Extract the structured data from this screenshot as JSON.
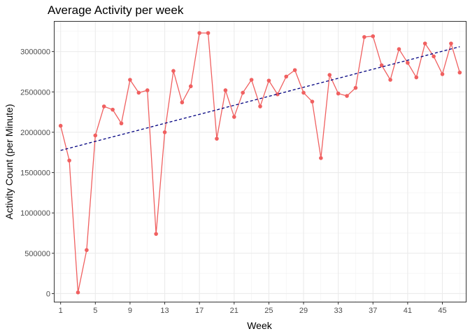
{
  "chart_data": {
    "type": "line",
    "title": "Average Activity per week",
    "xlabel": "Week",
    "ylabel": "Activity Count (per Minute)",
    "xlim": [
      0.3,
      47.7
    ],
    "ylim": [
      -100000,
      3370000
    ],
    "x_ticks": [
      1,
      5,
      9,
      13,
      17,
      21,
      25,
      29,
      33,
      37,
      41,
      45
    ],
    "y_ticks": [
      0,
      500000,
      1000000,
      1500000,
      2000000,
      2500000,
      3000000
    ],
    "x_tick_labels": [
      "1",
      "5",
      "9",
      "13",
      "17",
      "21",
      "25",
      "29",
      "33",
      "37",
      "41",
      "45"
    ],
    "y_tick_labels": [
      "0",
      "500000",
      "1000000",
      "1500000",
      "2000000",
      "2500000",
      "3000000"
    ],
    "grid": true,
    "legend": "none",
    "series": [
      {
        "color": "#f06060",
        "x": [
          1,
          2,
          3,
          4,
          5,
          6,
          7,
          8,
          9,
          10,
          11,
          12,
          13,
          14,
          15,
          16,
          17,
          18,
          19,
          20,
          21,
          22,
          23,
          24,
          25,
          26,
          27,
          28,
          29,
          30,
          31,
          32,
          33,
          34,
          35,
          36,
          37,
          38,
          39,
          40,
          41,
          42,
          43,
          44,
          45,
          46,
          47
        ],
        "values": [
          2080000,
          1650000,
          15000,
          540000,
          1960000,
          2320000,
          2280000,
          2110000,
          2650000,
          2490000,
          2520000,
          740000,
          2000000,
          2760000,
          2370000,
          2570000,
          3230000,
          3230000,
          1920000,
          2520000,
          2190000,
          2490000,
          2650000,
          2320000,
          2640000,
          2470000,
          2690000,
          2770000,
          2490000,
          2380000,
          1680000,
          2710000,
          2480000,
          2450000,
          2550000,
          3180000,
          3190000,
          2830000,
          2650000,
          3030000,
          2860000,
          2680000,
          3100000,
          2940000,
          2720000,
          3100000,
          2740000
        ]
      }
    ],
    "trendline": {
      "style": "dashed",
      "color": "#000080",
      "x": [
        1,
        47
      ],
      "values": [
        1775000,
        3060000
      ]
    }
  }
}
